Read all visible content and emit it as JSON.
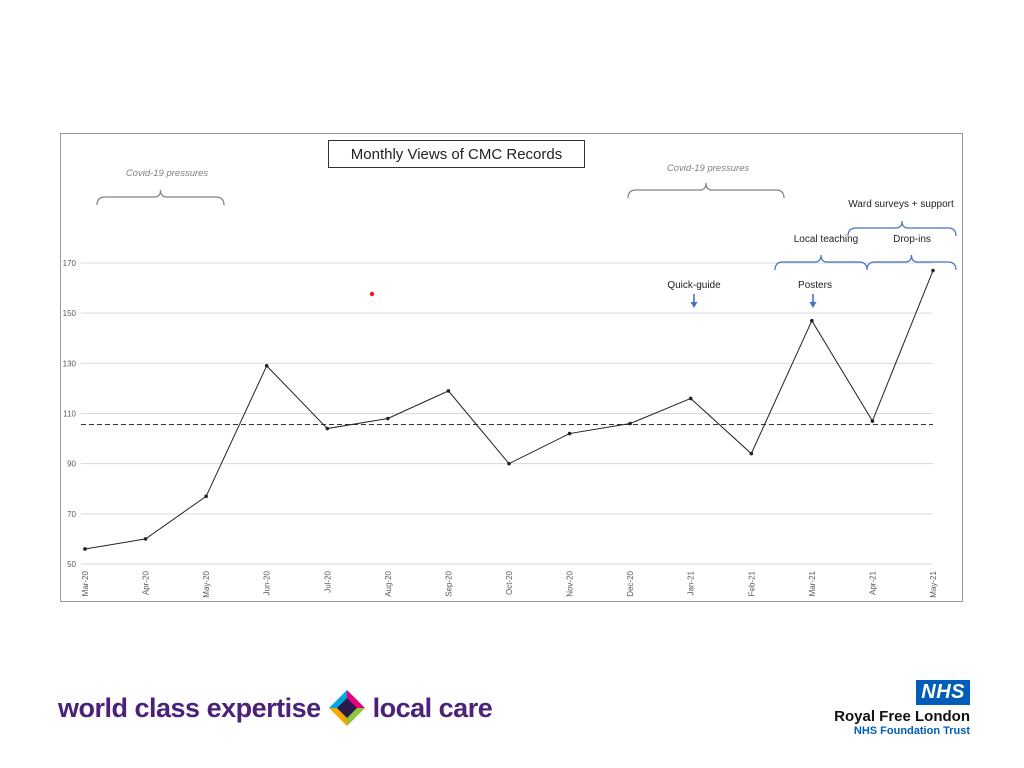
{
  "chart_data": {
    "type": "line",
    "title": "Monthly Views of CMC Records",
    "categories": [
      "Mar-20",
      "Apr-20",
      "May-20",
      "Jun-20",
      "Jul-20",
      "Aug-20",
      "Sep-20",
      "Oct-20",
      "Nov-20",
      "Dec-20",
      "Jan-21",
      "Feb-21",
      "Mar-21",
      "Apr-21",
      "May-21"
    ],
    "values": [
      56,
      60,
      77,
      129,
      104,
      108,
      119,
      90,
      102,
      106,
      116,
      94,
      147,
      107,
      167
    ],
    "mean_line": 105.6,
    "ylim": [
      50,
      170
    ],
    "yticks": [
      50,
      70,
      90,
      110,
      130,
      150,
      170
    ],
    "grid": true,
    "annotations": {
      "covid_left": "Covid-19 pressures",
      "covid_right": "Covid-19 pressures",
      "ward_surveys": "Ward surveys + support",
      "local_teaching": "Local teaching",
      "drop_ins": "Drop-ins",
      "quick_guide": "Quick-guide",
      "posters": "Posters"
    },
    "colors": {
      "line": "#222222",
      "annotation_blue": "#4472c4",
      "annotation_grey": "#808080",
      "stray_point": "#e02020"
    }
  },
  "footer": {
    "tagline_left": "world class expertise",
    "tagline_right": "local care",
    "nhs": "NHS",
    "org_name": "Royal Free London",
    "org_sub": "NHS Foundation Trust"
  }
}
